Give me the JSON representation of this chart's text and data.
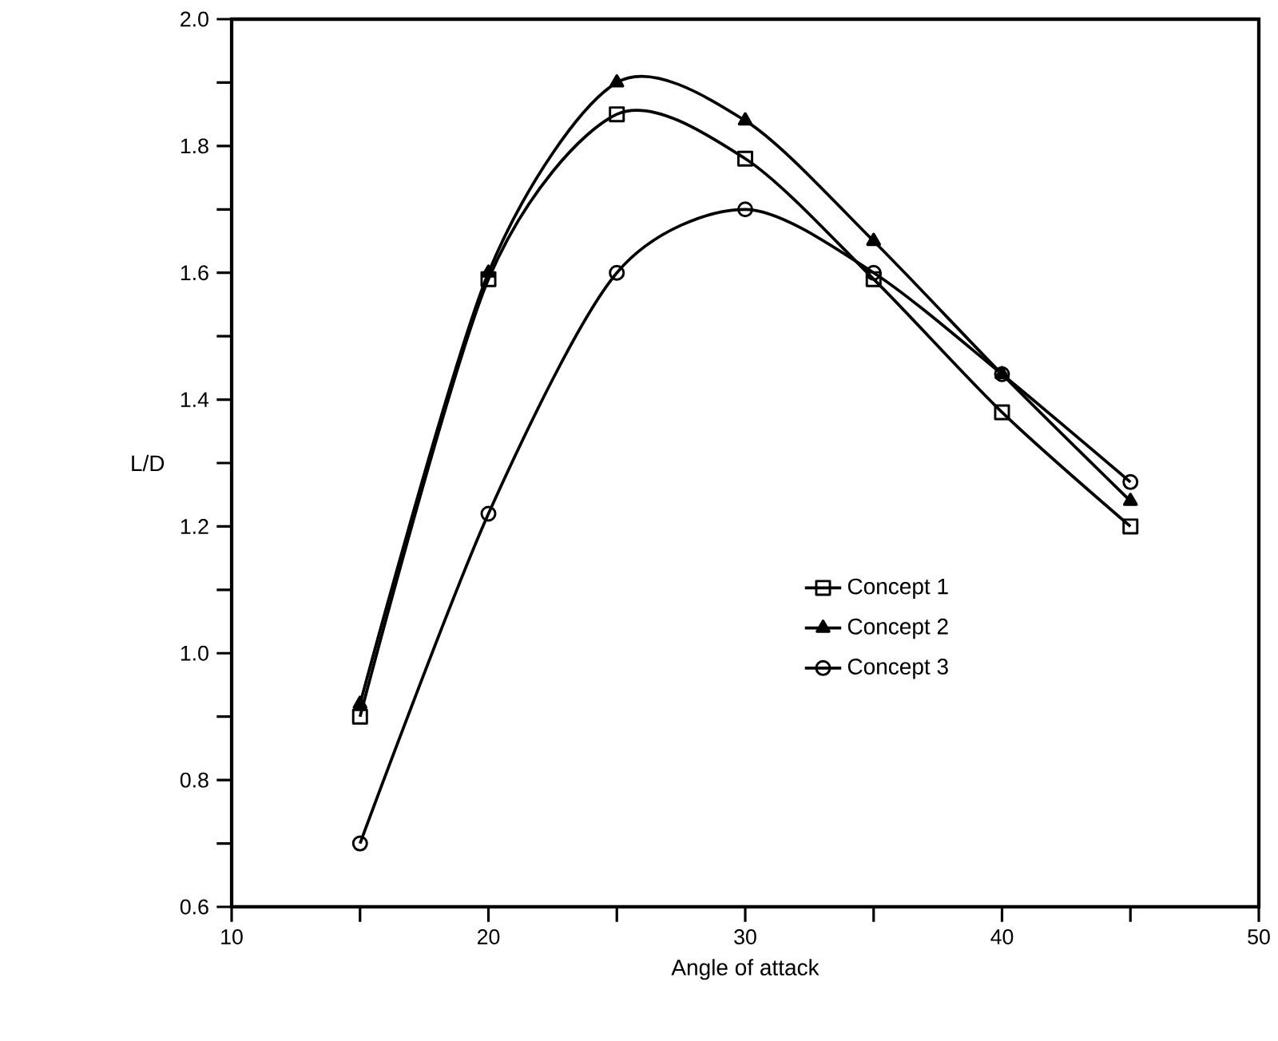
{
  "chart_data": {
    "type": "line",
    "xlabel": "Angle of attack",
    "ylabel": "L/D",
    "x": [
      15,
      20,
      25,
      30,
      35,
      40,
      45
    ],
    "series": [
      {
        "name": "Concept 1",
        "color": "#000000",
        "marker": "square",
        "values": [
          0.9,
          1.59,
          1.85,
          1.78,
          1.59,
          1.38,
          1.2
        ]
      },
      {
        "name": "Concept 2",
        "color": "#000000",
        "marker": "triangle",
        "values": [
          0.92,
          1.6,
          1.9,
          1.84,
          1.65,
          1.44,
          1.24
        ]
      },
      {
        "name": "Concept 3",
        "color": "#000000",
        "marker": "circle",
        "values": [
          0.7,
          1.22,
          1.6,
          1.7,
          1.6,
          1.44,
          1.27
        ]
      }
    ],
    "xlim": [
      10,
      50
    ],
    "xticks": [
      10,
      {
        "value": 15,
        "label": null
      },
      20,
      {
        "value": 25,
        "label": null
      },
      30,
      {
        "value": 35,
        "label": null
      },
      40,
      {
        "value": 45,
        "label": null
      },
      50
    ],
    "ylim": [
      0.6,
      2.0
    ],
    "yticks": [
      {
        "value": 0.6,
        "label": "0.6"
      },
      {
        "value": 0.7,
        "label": null
      },
      {
        "value": 0.8,
        "label": "0.8"
      },
      {
        "value": 0.9,
        "label": null
      },
      {
        "value": 1.0,
        "label": "1.0"
      },
      {
        "value": 1.1,
        "label": null
      },
      {
        "value": 1.2,
        "label": "1.2"
      },
      {
        "value": 1.3,
        "label": null
      },
      {
        "value": 1.4,
        "label": "1.4"
      },
      {
        "value": 1.5,
        "label": null
      },
      {
        "value": 1.6,
        "label": "1.6"
      },
      {
        "value": 1.7,
        "label": null
      },
      {
        "value": 1.8,
        "label": "1.8"
      },
      {
        "value": 1.9,
        "label": null
      },
      {
        "value": 2.0,
        "label": "2.0"
      }
    ],
    "legend": "bottom right",
    "grid": false,
    "line_style": "solid"
  }
}
